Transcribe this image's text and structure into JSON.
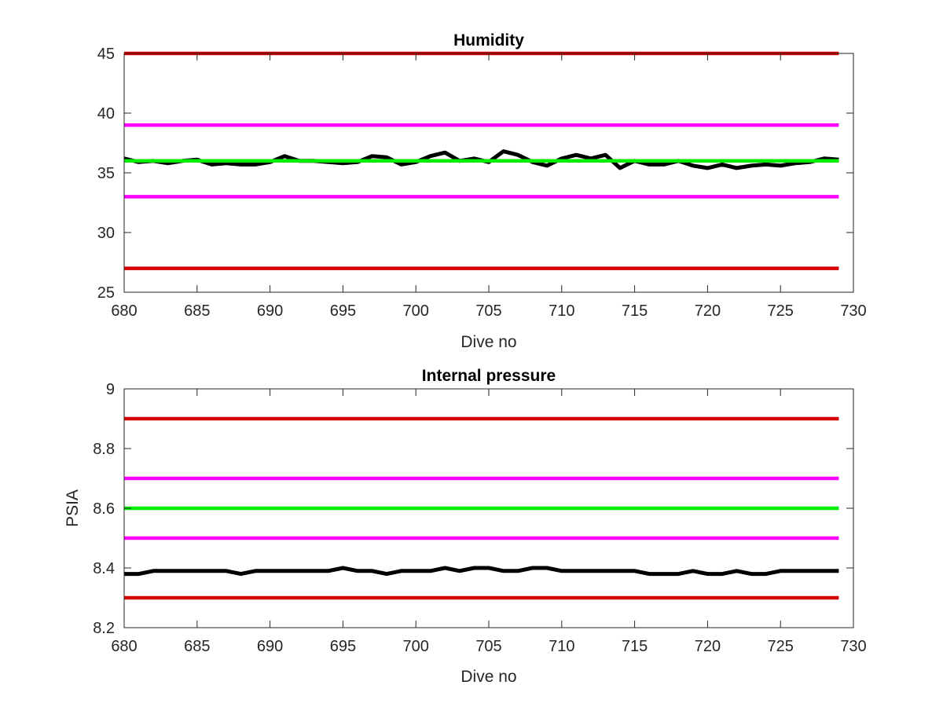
{
  "chart_data": [
    {
      "type": "line",
      "title": "Humidity",
      "xlabel": "Dive no",
      "ylabel": "",
      "xlim": [
        680,
        730
      ],
      "ylim": [
        25,
        45
      ],
      "xticks": [
        680,
        685,
        690,
        695,
        700,
        705,
        710,
        715,
        720,
        725,
        730
      ],
      "yticks": [
        25,
        30,
        35,
        40,
        45
      ],
      "grid": false,
      "series": [
        {
          "color": "#d40000",
          "x": [
            680,
            729
          ],
          "y": [
            45,
            45
          ]
        },
        {
          "color": "#ff00ff",
          "x": [
            680,
            729
          ],
          "y": [
            39,
            39
          ]
        },
        {
          "color": "#ff00ff",
          "x": [
            680,
            729
          ],
          "y": [
            33,
            33
          ]
        },
        {
          "color": "#d40000",
          "x": [
            680,
            729
          ],
          "y": [
            27,
            27
          ]
        },
        {
          "color": "#000000",
          "x": [
            680,
            681,
            682,
            683,
            684,
            685,
            686,
            687,
            688,
            689,
            690,
            691,
            692,
            693,
            694,
            695,
            696,
            697,
            698,
            699,
            700,
            701,
            702,
            703,
            704,
            705,
            706,
            707,
            708,
            709,
            710,
            711,
            712,
            713,
            714,
            715,
            716,
            717,
            718,
            719,
            720,
            721,
            722,
            723,
            724,
            725,
            726,
            727,
            728,
            729
          ],
          "y": [
            36.2,
            35.9,
            36.0,
            35.8,
            36.0,
            36.1,
            35.7,
            35.8,
            35.7,
            35.7,
            35.9,
            36.4,
            36.0,
            36.0,
            35.9,
            35.8,
            35.9,
            36.4,
            36.3,
            35.7,
            35.9,
            36.4,
            36.7,
            36.0,
            36.2,
            35.9,
            36.8,
            36.5,
            35.9,
            35.6,
            36.2,
            36.5,
            36.2,
            36.5,
            35.4,
            36.0,
            35.7,
            35.7,
            36.0,
            35.6,
            35.4,
            35.7,
            35.4,
            35.6,
            35.7,
            35.6,
            35.8,
            35.9,
            36.2,
            36.1
          ]
        },
        {
          "color": "#00ee00",
          "x": [
            680,
            729
          ],
          "y": [
            36,
            36
          ]
        }
      ]
    },
    {
      "type": "line",
      "title": "Internal pressure",
      "xlabel": "Dive no",
      "ylabel": "PSIA",
      "xlim": [
        680,
        730
      ],
      "ylim": [
        8.2,
        9
      ],
      "xticks": [
        680,
        685,
        690,
        695,
        700,
        705,
        710,
        715,
        720,
        725,
        730
      ],
      "yticks": [
        "8.2",
        "8.4",
        "8.6",
        "8.8",
        "9"
      ],
      "grid": false,
      "series": [
        {
          "color": "#d40000",
          "x": [
            680,
            729
          ],
          "y": [
            8.9,
            8.9
          ]
        },
        {
          "color": "#ff00ff",
          "x": [
            680,
            729
          ],
          "y": [
            8.7,
            8.7
          ]
        },
        {
          "color": "#00ee00",
          "x": [
            680,
            729
          ],
          "y": [
            8.6,
            8.6
          ]
        },
        {
          "color": "#ff00ff",
          "x": [
            680,
            729
          ],
          "y": [
            8.5,
            8.5
          ]
        },
        {
          "color": "#d40000",
          "x": [
            680,
            729
          ],
          "y": [
            8.3,
            8.3
          ]
        },
        {
          "color": "#000000",
          "x": [
            680,
            681,
            682,
            683,
            684,
            685,
            686,
            687,
            688,
            689,
            690,
            691,
            692,
            693,
            694,
            695,
            696,
            697,
            698,
            699,
            700,
            701,
            702,
            703,
            704,
            705,
            706,
            707,
            708,
            709,
            710,
            711,
            712,
            713,
            714,
            715,
            716,
            717,
            718,
            719,
            720,
            721,
            722,
            723,
            724,
            725,
            726,
            727,
            728,
            729
          ],
          "y": [
            8.38,
            8.38,
            8.39,
            8.39,
            8.39,
            8.39,
            8.39,
            8.39,
            8.38,
            8.39,
            8.39,
            8.39,
            8.39,
            8.39,
            8.39,
            8.4,
            8.39,
            8.39,
            8.38,
            8.39,
            8.39,
            8.39,
            8.4,
            8.39,
            8.4,
            8.4,
            8.39,
            8.39,
            8.4,
            8.4,
            8.39,
            8.39,
            8.39,
            8.39,
            8.39,
            8.39,
            8.38,
            8.38,
            8.38,
            8.39,
            8.38,
            8.38,
            8.39,
            8.38,
            8.38,
            8.39,
            8.39,
            8.39,
            8.39,
            8.39
          ]
        }
      ]
    }
  ]
}
